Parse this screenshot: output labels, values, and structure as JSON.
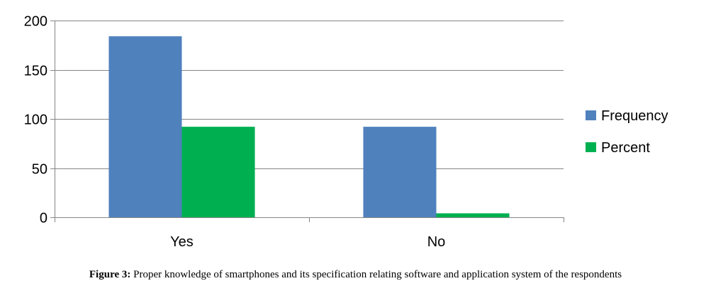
{
  "chart_data": {
    "type": "bar",
    "categories": [
      "Yes",
      "No"
    ],
    "series": [
      {
        "name": "Frequency",
        "values": [
          184,
          92
        ],
        "color": "#4f81bd"
      },
      {
        "name": "Percent",
        "values": [
          92,
          4
        ],
        "color": "#00b050"
      }
    ],
    "yticks": [
      0,
      50,
      100,
      150,
      200
    ],
    "ylim": [
      0,
      200
    ],
    "grid": true,
    "legend_position": "right"
  },
  "caption": {
    "label": "Figure 3:",
    "text": " Proper knowledge of smartphones and its specification relating software and application system of the respondents"
  }
}
